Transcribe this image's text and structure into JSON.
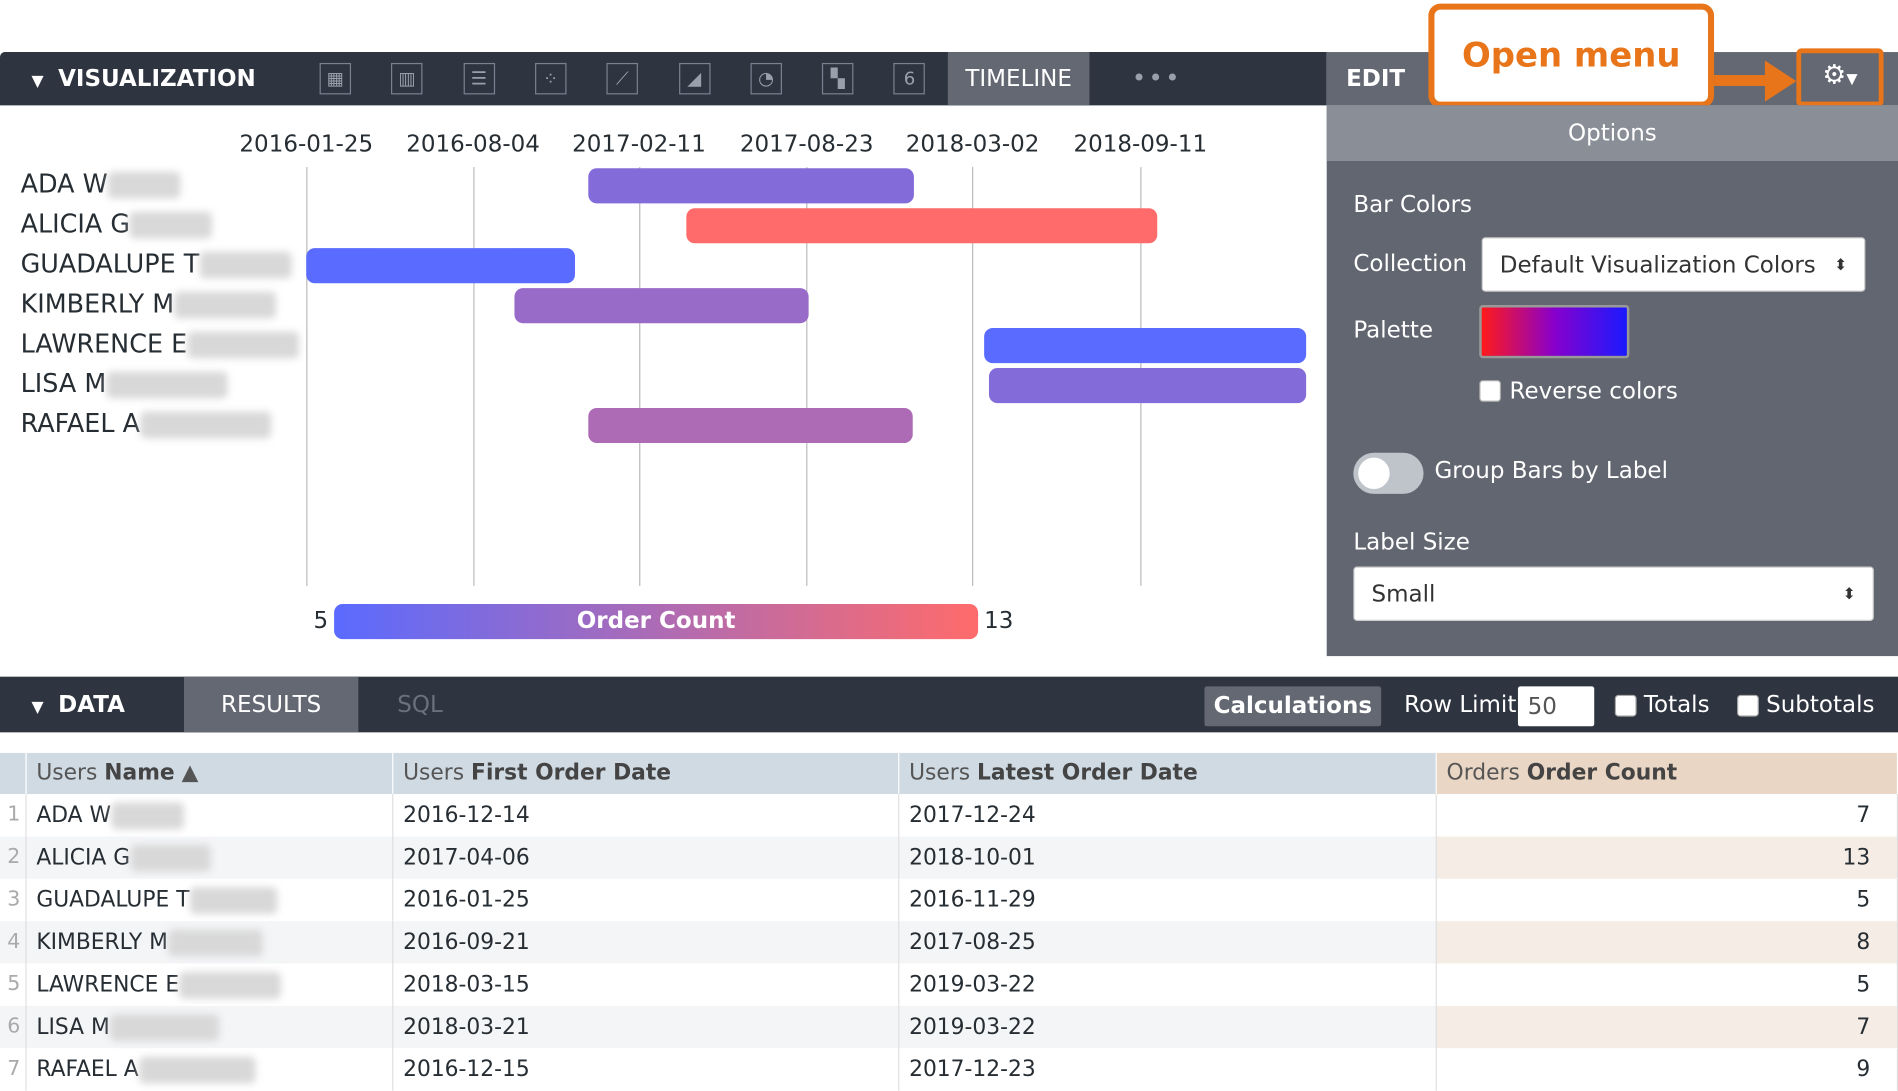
{
  "visualization": {
    "title": "VISUALIZATION",
    "chart_icons": [
      "table-icon",
      "column-icon",
      "bar-icon",
      "scatter-icon",
      "line-icon",
      "area-icon",
      "pie-icon",
      "map-icon",
      "single-value-icon"
    ],
    "single_value_glyph": "6",
    "active_tab": "TIMELINE",
    "more": "•••"
  },
  "edit": {
    "title": "EDIT",
    "callout": "Open menu",
    "options_header": "Options",
    "bar_colors_label": "Bar Colors",
    "collection_label": "Collection",
    "collection_value": "Default Visualization Colors",
    "palette_label": "Palette",
    "reverse_colors_label": "Reverse colors",
    "reverse_colors_checked": false,
    "group_bars_label": "Group Bars by Label",
    "group_bars_on": false,
    "label_size_label": "Label Size",
    "label_size_value": "Small"
  },
  "chart_data": {
    "type": "timeline",
    "x_ticks": [
      "2016-01-25",
      "2016-08-04",
      "2017-02-11",
      "2017-08-23",
      "2018-03-02",
      "2018-09-11"
    ],
    "rows": [
      {
        "label": "ADA W",
        "start": "2016-12-14",
        "end": "2017-12-24",
        "value": 7
      },
      {
        "label": "ALICIA G",
        "start": "2017-04-06",
        "end": "2018-10-01",
        "value": 13
      },
      {
        "label": "GUADALUPE T",
        "start": "2016-01-25",
        "end": "2016-11-29",
        "value": 5
      },
      {
        "label": "KIMBERLY M",
        "start": "2016-09-21",
        "end": "2017-08-25",
        "value": 8
      },
      {
        "label": "LAWRENCE E",
        "start": "2018-03-15",
        "end": "2019-03-22",
        "value": 5
      },
      {
        "label": "LISA M",
        "start": "2018-03-21",
        "end": "2019-03-22",
        "value": 7
      },
      {
        "label": "RAFAEL A",
        "start": "2016-12-15",
        "end": "2017-12-23",
        "value": 9
      }
    ],
    "legend": {
      "title": "Order Count",
      "min": 5,
      "max": 13,
      "min_color": "#5a6bff",
      "max_color": "#ff6b6b"
    },
    "grid": true
  },
  "data_section": {
    "title": "DATA",
    "tabs": [
      "RESULTS",
      "SQL"
    ],
    "calculations": "Calculations",
    "row_limit_label": "Row Limit",
    "row_limit_value": "50",
    "totals_label": "Totals",
    "subtotals_label": "Subtotals"
  },
  "table": {
    "columns": [
      {
        "prefix": "Users",
        "name": "Name",
        "sort": "▲"
      },
      {
        "prefix": "Users",
        "name": "First Order Date"
      },
      {
        "prefix": "Users",
        "name": "Latest Order Date"
      },
      {
        "prefix": "Orders",
        "name": "Order Count"
      }
    ],
    "rows": [
      [
        "1",
        "ADA W",
        "2016-12-14",
        "2017-12-24",
        "7"
      ],
      [
        "2",
        "ALICIA G",
        "2017-04-06",
        "2018-10-01",
        "13"
      ],
      [
        "3",
        "GUADALUPE T",
        "2016-01-25",
        "2016-11-29",
        "5"
      ],
      [
        "4",
        "KIMBERLY M",
        "2016-09-21",
        "2017-08-25",
        "8"
      ],
      [
        "5",
        "LAWRENCE E",
        "2018-03-15",
        "2019-03-22",
        "5"
      ],
      [
        "6",
        "LISA M",
        "2018-03-21",
        "2019-03-22",
        "7"
      ],
      [
        "7",
        "RAFAEL A",
        "2016-12-15",
        "2017-12-23",
        "9"
      ]
    ]
  }
}
